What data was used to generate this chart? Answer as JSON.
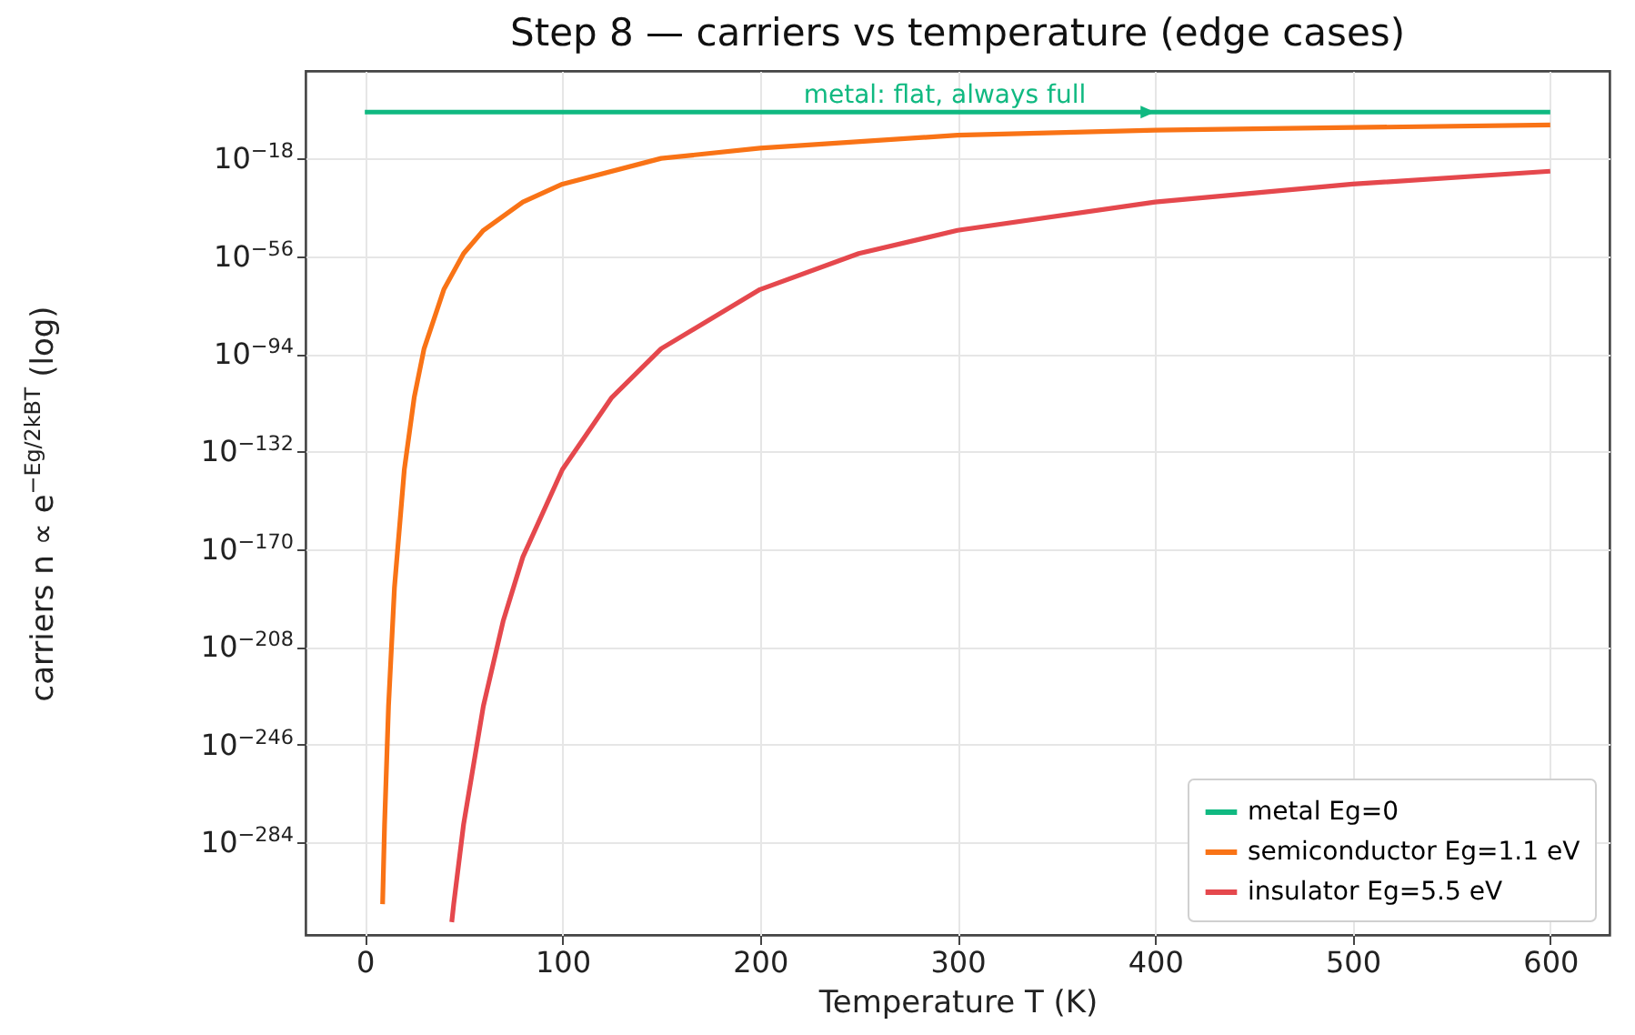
{
  "chart_data": {
    "type": "line",
    "title": "Step 8 — carriers vs temperature (edge cases)",
    "xlabel": "Temperature T (K)",
    "ylabel": "carriers n ∝ e$^{−Eg/2kBT}$ (log)",
    "log": "y",
    "grid": true,
    "legend": "bottom right",
    "line_style": "solid",
    "marker": "none",
    "xlim": [
      -30,
      630
    ],
    "xticks": [
      0,
      100,
      200,
      300,
      400,
      500,
      600
    ],
    "ylim": [
      1e-320,
      1e+16
    ],
    "yticks": [
      {
        "value": 1e-18,
        "label": "10$^{−18}$"
      },
      {
        "value": 1e-56,
        "label": "10$^{−56}$"
      },
      {
        "value": 1e-94,
        "label": "10$^{−94}$"
      },
      {
        "value": 1e-132,
        "label": "10$^{−132}$"
      },
      {
        "value": 1e-170,
        "label": "10$^{−170}$"
      },
      {
        "value": 1e-208,
        "label": "10$^{−208}$"
      },
      {
        "value": 1e-246,
        "label": "10$^{−246}$"
      },
      {
        "value": 1e-284,
        "label": "10$^{−284}$"
      }
    ],
    "annotations": [
      {
        "text": "metal: flat, always full",
        "x": 400,
        "y": 1
      }
    ],
    "series": [
      {
        "name": "metal Eg=0",
        "color": "#10b981",
        "x": [
          0,
          100,
          200,
          300,
          400,
          500,
          600
        ],
        "values": [
          1,
          1,
          1,
          1,
          1,
          1,
          1
        ]
      },
      {
        "name": "semiconductor Eg=1.1 eV",
        "color": "#f97316",
        "x": [
          9,
          10,
          12,
          15,
          20,
          25,
          30,
          40,
          50,
          60,
          80,
          100,
          150,
          200,
          300,
          400,
          500,
          600
        ],
        "values": [
          1e-308,
          1e-277,
          1e-231,
          1e-185,
          1e-139,
          1e-111,
          1e-92,
          1e-69,
          1e-55,
          1e-46,
          1e-35,
          1e-28,
          1e-18,
          1e-14,
          1e-09,
          1e-07,
          1e-06,
          1e-05
        ]
      },
      {
        "name": "insulator Eg=5.5 eV",
        "color": "#e5484d",
        "x": [
          44,
          45,
          50,
          60,
          70,
          80,
          100,
          125,
          150,
          200,
          250,
          300,
          400,
          500,
          600
        ],
        "values": [
          1e-315,
          1e-308,
          1e-277,
          1e-231,
          1e-198,
          1e-173,
          1e-139,
          1e-111,
          1e-92,
          1e-69,
          1e-55,
          1e-46,
          1e-35,
          1e-28,
          1e-23
        ]
      }
    ]
  }
}
